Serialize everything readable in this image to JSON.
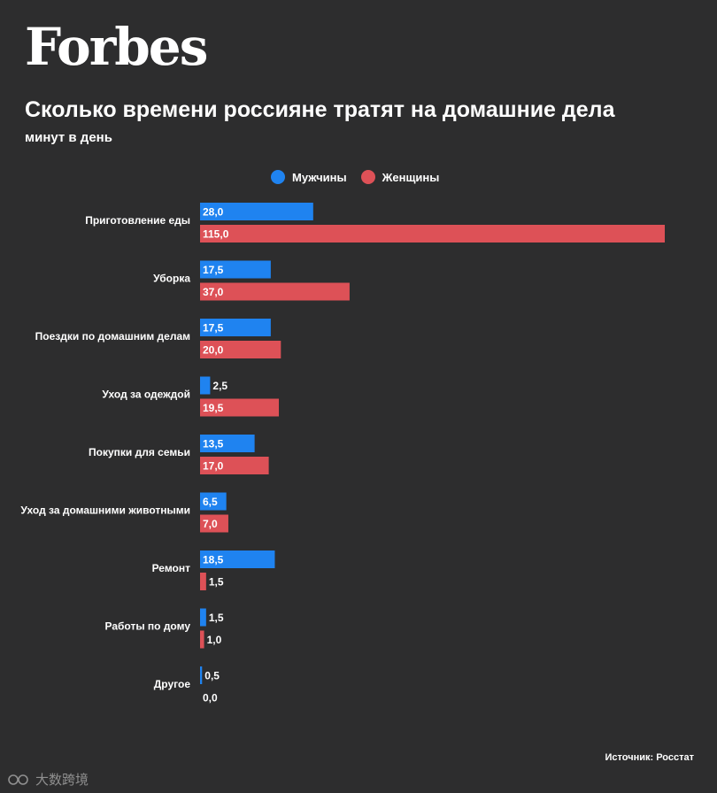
{
  "brand": {
    "logo_text": "Forbes"
  },
  "colors": {
    "background": "#2d2d2e",
    "men": "#1f83f0",
    "women": "#dd5157",
    "text": "#ffffff"
  },
  "source": "Источник: Росстат",
  "watermark": {
    "text": "大数跨境",
    "icon": "logo-mark-icon"
  },
  "chart_data": {
    "type": "bar",
    "orientation": "horizontal",
    "title": "Сколько времени россияне тратят на домашние дела",
    "subtitle": "минут в день",
    "xlabel": "",
    "ylabel": "",
    "xlim": [
      0,
      115
    ],
    "grid": false,
    "legend_position": "top-center",
    "categories": [
      "Приготовление еды",
      "Уборка",
      "Поездки по домашним делам",
      "Уход за одеждой",
      "Покупки для семьи",
      "Уход за домашними животными",
      "Ремонт",
      "Работы по дому",
      "Другое"
    ],
    "series": [
      {
        "name": "Мужчины",
        "color": "#1f83f0",
        "values": [
          28.0,
          17.5,
          17.5,
          2.5,
          13.5,
          6.5,
          18.5,
          1.5,
          0.5
        ],
        "labels": [
          "28,0",
          "17,5",
          "17,5",
          "2,5",
          "13,5",
          "6,5",
          "18,5",
          "1,5",
          "0,5"
        ]
      },
      {
        "name": "Женщины",
        "color": "#dd5157",
        "values": [
          115.0,
          37.0,
          20.0,
          19.5,
          17.0,
          7.0,
          1.5,
          1.0,
          0.0
        ],
        "labels": [
          "115,0",
          "37,0",
          "20,0",
          "19,5",
          "17,0",
          "7,0",
          "1,5",
          "1,0",
          "0,0"
        ]
      }
    ]
  }
}
